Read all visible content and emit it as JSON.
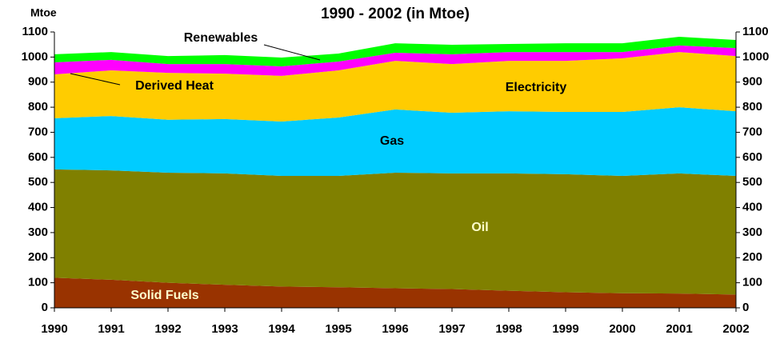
{
  "chart_data": {
    "type": "stacked_area",
    "title": "1990 - 2002 (in Mtoe)",
    "y_label": "Mtoe",
    "categories": [
      "1990",
      "1991",
      "1992",
      "1993",
      "1994",
      "1995",
      "1996",
      "1997",
      "1998",
      "1999",
      "2000",
      "2001",
      "2002"
    ],
    "series": [
      {
        "name": "Solid Fuels",
        "color": "#993300",
        "values": [
          120,
          112,
          100,
          92,
          85,
          82,
          78,
          75,
          68,
          62,
          58,
          57,
          53
        ]
      },
      {
        "name": "Oil",
        "color": "#808000",
        "values": [
          432,
          436,
          439,
          444,
          441,
          444,
          461,
          461,
          468,
          471,
          468,
          479,
          473
        ]
      },
      {
        "name": "Gas",
        "color": "#00ccff",
        "values": [
          204,
          217,
          211,
          217,
          217,
          233,
          252,
          242,
          248,
          248,
          255,
          264,
          258
        ]
      },
      {
        "name": "Electricity",
        "color": "#ffcc00",
        "values": [
          175,
          182,
          187,
          181,
          182,
          188,
          194,
          194,
          201,
          204,
          214,
          220,
          220
        ]
      },
      {
        "name": "Derived Heat",
        "color": "#ff00ff",
        "values": [
          48,
          42,
          35,
          38,
          38,
          35,
          32,
          39,
          35,
          35,
          25,
          26,
          32
        ]
      },
      {
        "name": "Renewables",
        "color": "#00ff00",
        "values": [
          32,
          31,
          32,
          36,
          35,
          32,
          38,
          38,
          32,
          35,
          35,
          35,
          32
        ]
      }
    ],
    "ylim": [
      0,
      1100
    ],
    "yticks": [
      0,
      100,
      200,
      300,
      400,
      500,
      600,
      700,
      800,
      900,
      1000,
      1100
    ]
  }
}
